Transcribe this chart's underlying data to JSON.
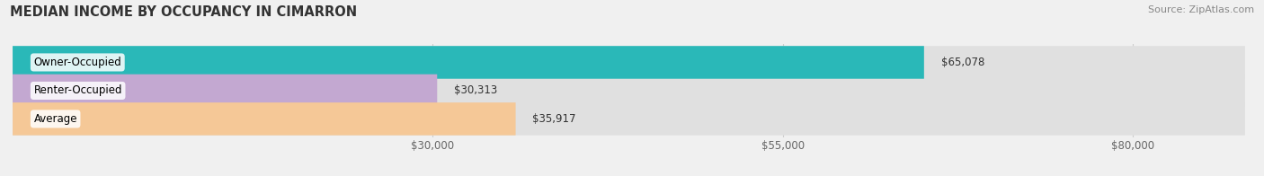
{
  "title": "MEDIAN INCOME BY OCCUPANCY IN CIMARRON",
  "source": "Source: ZipAtlas.com",
  "categories": [
    "Owner-Occupied",
    "Renter-Occupied",
    "Average"
  ],
  "values": [
    65078,
    30313,
    35917
  ],
  "bar_colors": [
    "#2ab8b8",
    "#c3a8d1",
    "#f5c897"
  ],
  "value_labels": [
    "$65,078",
    "$30,313",
    "$35,917"
  ],
  "x_ticks": [
    30000,
    55000,
    80000
  ],
  "x_tick_labels": [
    "$30,000",
    "$55,000",
    "$80,000"
  ],
  "x_min": 0,
  "x_max": 88000,
  "bar_height": 0.58,
  "bg_color": "#f0f0f0",
  "bar_bg_color": "#e0e0e0",
  "title_fontsize": 10.5,
  "label_fontsize": 8.5,
  "tick_fontsize": 8.5,
  "source_fontsize": 8
}
